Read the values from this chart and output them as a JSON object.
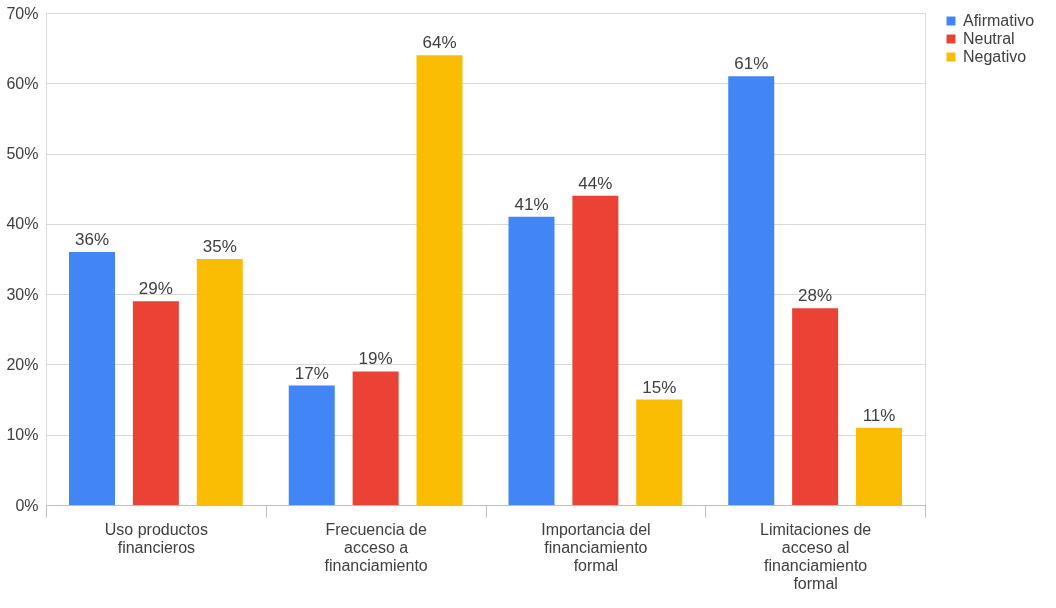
{
  "chart_data": {
    "type": "bar",
    "categories": [
      "Uso productos financieros",
      "Frecuencia de acceso a financiamiento",
      "Importancia del financiamiento formal",
      "Limitaciones de acceso al financiamiento formal"
    ],
    "series": [
      {
        "name": "Afirmativo",
        "color": "#4285f4",
        "values": [
          36,
          17,
          41,
          61
        ],
        "value_labels": [
          "36%",
          "17%",
          "41%",
          "61%"
        ]
      },
      {
        "name": "Neutral",
        "color": "#ea4335",
        "values": [
          29,
          19,
          44,
          28
        ],
        "value_labels": [
          "29%",
          "19%",
          "44%",
          "28%"
        ]
      },
      {
        "name": "Negativo",
        "color": "#fbbc04",
        "values": [
          35,
          64,
          15,
          11
        ],
        "value_labels": [
          "35%",
          "64%",
          "15%",
          "11%"
        ]
      }
    ],
    "ylim": [
      0,
      70
    ],
    "yticks": [
      {
        "value": 0,
        "label": "0%"
      },
      {
        "value": 10,
        "label": "10%"
      },
      {
        "value": 20,
        "label": "20%"
      },
      {
        "value": 30,
        "label": "30%"
      },
      {
        "value": 40,
        "label": "40%"
      },
      {
        "value": 50,
        "label": "50%"
      },
      {
        "value": 60,
        "label": "60%"
      },
      {
        "value": 70,
        "label": "70%"
      }
    ],
    "grid": "y",
    "legend": "right"
  }
}
